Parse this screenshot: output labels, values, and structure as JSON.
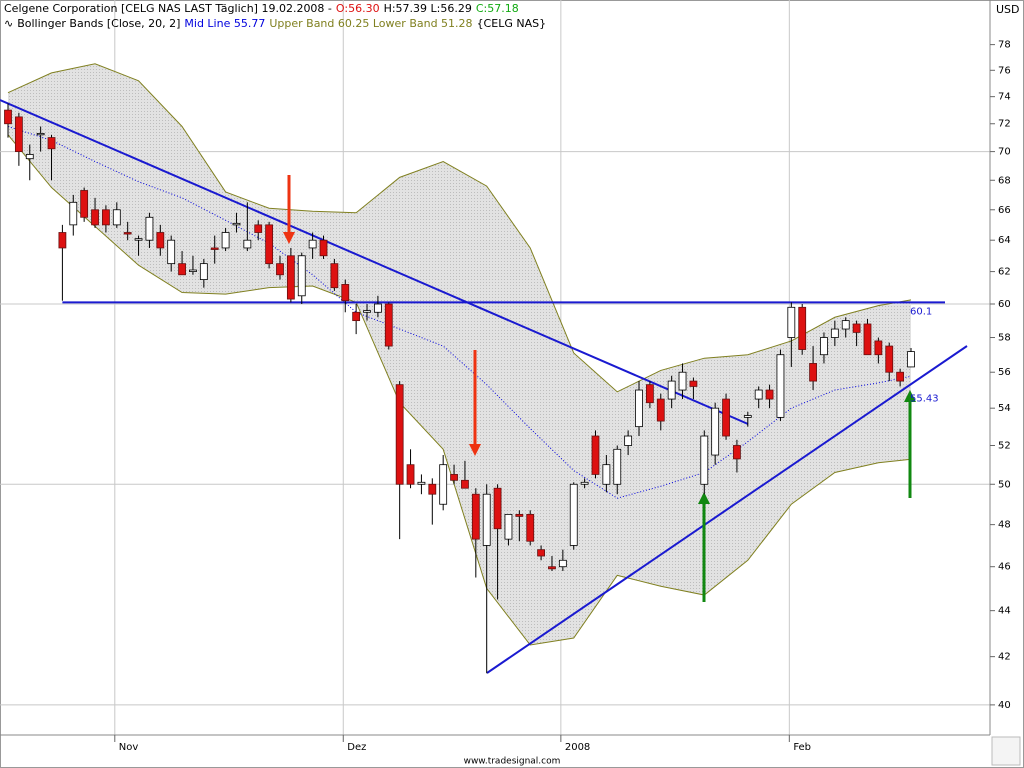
{
  "chart_data": {
    "type": "candlestick",
    "title": "Celgene Corporation [CELG NAS LAST Täglich] 19.02.2008 -",
    "quote": {
      "open": "O:56.30",
      "high_low": "H:57.39 L:56.29",
      "close": "C:57.18"
    },
    "indicator": {
      "name": "Bollinger Bands [Close, 20, 2]",
      "mid": "Mid Line 55.77",
      "bands": "Upper Band 60.25 Lower Band 51.28",
      "symbol": "{CELG NAS}"
    },
    "y_label": "USD",
    "watermark": "www.tradesignal.com",
    "log_scale": true,
    "ylim": [
      38.8,
      81.6
    ],
    "yticks": [
      40,
      42,
      44,
      46,
      48,
      50,
      52,
      54,
      56,
      58,
      60,
      62,
      64,
      66,
      68,
      70,
      72,
      74,
      76,
      78
    ],
    "ygrid": [
      40,
      50,
      60,
      70
    ],
    "categories": [
      null,
      null,
      null,
      null,
      null,
      null,
      null,
      null,
      null,
      null,
      "Nov",
      null,
      null,
      null,
      null,
      null,
      null,
      null,
      null,
      null,
      null,
      null,
      null,
      null,
      null,
      null,
      null,
      null,
      null,
      null,
      null,
      "Dez",
      null,
      null,
      null,
      null,
      null,
      null,
      null,
      null,
      null,
      null,
      null,
      null,
      null,
      null,
      null,
      null,
      null,
      null,
      null,
      "2008",
      null,
      null,
      null,
      null,
      null,
      null,
      null,
      null,
      null,
      null,
      null,
      null,
      null,
      null,
      null,
      null,
      null,
      null,
      null,
      null,
      "Feb",
      null,
      null,
      null,
      null,
      null,
      null,
      null,
      null,
      null,
      null,
      null
    ],
    "open": [
      73,
      72.5,
      69.5,
      71.2,
      71,
      64.5,
      65,
      67.3,
      66,
      66,
      65,
      64.5,
      64,
      64,
      64.5,
      62.5,
      62.5,
      62,
      61.5,
      63.5,
      63.5,
      65,
      63.5,
      65,
      65,
      62.5,
      63,
      60.5,
      63.5,
      64,
      62.5,
      61.2,
      59.5,
      59.5,
      59.5,
      60,
      55.3,
      51,
      50,
      50,
      49,
      50.5,
      50.2,
      49.5,
      47,
      49.8,
      47.3,
      48.5,
      48.5,
      46.8,
      46,
      46,
      47,
      50,
      52.5,
      50,
      50,
      52,
      53,
      55.3,
      54.5,
      54.5,
      55,
      55.5,
      50,
      51.5,
      54.5,
      52,
      53.5,
      54.5,
      55,
      53.5,
      58,
      59.8,
      56.5,
      57,
      58,
      58.5,
      58.8,
      58.8,
      57.8,
      57.5,
      56,
      56.3
    ],
    "high": [
      73.5,
      72.8,
      70.5,
      71.8,
      71.2,
      65,
      67,
      67.5,
      66.8,
      66.3,
      66.5,
      65.2,
      64.3,
      65.8,
      65,
      64.3,
      63.3,
      63,
      62.8,
      64.3,
      64.8,
      65.8,
      66.5,
      65.3,
      65.2,
      63,
      63.5,
      63.2,
      64.5,
      64.3,
      62.8,
      61.5,
      60,
      60,
      60.5,
      60.1,
      55.5,
      51.8,
      50.5,
      50.3,
      51.5,
      51,
      51.2,
      49.8,
      50,
      50,
      48.5,
      48.7,
      48.7,
      47,
      46.5,
      46.8,
      50.1,
      50.3,
      52.8,
      51.5,
      52,
      52.8,
      55.5,
      55.5,
      54.8,
      55.8,
      56.5,
      55.7,
      52.8,
      54.3,
      54.8,
      52.3,
      53.8,
      55.2,
      55.3,
      57.3,
      60.1,
      60,
      57.5,
      58.3,
      59,
      59.2,
      59,
      59.1,
      58,
      57.7,
      56.2,
      57.39
    ],
    "low": [
      71,
      69,
      68,
      70,
      68,
      60.2,
      64.3,
      65.2,
      64.8,
      64.5,
      64.8,
      64,
      63,
      63.5,
      63,
      62,
      61.8,
      61.8,
      61,
      62.5,
      63.3,
      64.5,
      63.3,
      64,
      62.2,
      61.5,
      60.1,
      60,
      62.8,
      62.8,
      60.8,
      59.5,
      58.2,
      59,
      59.2,
      57.3,
      47.3,
      49.8,
      49.5,
      48,
      48.7,
      50,
      49.8,
      45.5,
      41.3,
      44.5,
      47,
      47.2,
      47,
      46.3,
      45.8,
      45.8,
      46.8,
      49.8,
      50.3,
      49.6,
      49.5,
      51.5,
      52.5,
      54,
      52.8,
      54,
      54.5,
      54.5,
      49.5,
      51,
      52.3,
      50.6,
      53,
      54,
      54,
      53.3,
      56.3,
      57,
      55,
      56.5,
      57.5,
      58,
      57.5,
      57,
      56.5,
      55.5,
      55.2,
      56.29
    ],
    "close": [
      72,
      70,
      69.8,
      71.3,
      70.2,
      63.5,
      66.5,
      65.5,
      65,
      65,
      66,
      64.4,
      64.1,
      65.5,
      63.5,
      64,
      61.8,
      62.1,
      62.5,
      63.4,
      64.5,
      65.1,
      64,
      64.5,
      62.5,
      61.8,
      60.3,
      63,
      64,
      63,
      61,
      60.2,
      59,
      59.6,
      60,
      57.5,
      50,
      50,
      50.1,
      49.5,
      51,
      50.2,
      49.8,
      47.3,
      49.5,
      47.8,
      48.5,
      48.4,
      47.2,
      46.5,
      45.9,
      46.3,
      50,
      50.1,
      50.5,
      51,
      51.8,
      52.5,
      55,
      54.3,
      53.3,
      55.5,
      56,
      55.2,
      52.5,
      54,
      52.5,
      51.3,
      53.6,
      55,
      54.5,
      57,
      59.8,
      57.3,
      55.5,
      58,
      58.5,
      59,
      58.3,
      57,
      57,
      56,
      55.5,
      57.18
    ],
    "up_color": "#ffffff",
    "down_color": "#dd1111",
    "bands": {
      "x": [
        0,
        4,
        8,
        12,
        16,
        20,
        24,
        28,
        32,
        36,
        40,
        44,
        48,
        52,
        56,
        60,
        64,
        68,
        72,
        76,
        80,
        83
      ],
      "upper": {
        "color": "#808020",
        "values": [
          74.3,
          75.8,
          76.5,
          75.2,
          71.8,
          67.2,
          66.1,
          65.9,
          65.8,
          68.2,
          69.3,
          67.6,
          63.5,
          57.1,
          54.9,
          56.1,
          56.8,
          57,
          57.8,
          59.2,
          59.9,
          60.25
        ]
      },
      "middle": {
        "color": "#0000dd",
        "values": [
          71.8,
          70.8,
          69.3,
          67.9,
          66.8,
          65.3,
          63.8,
          61.8,
          59.5,
          58.5,
          57.5,
          55.3,
          52.9,
          50.7,
          49.3,
          49.9,
          50.6,
          52.2,
          54,
          55,
          55.4,
          55.77
        ]
      },
      "lower": {
        "color": "#808020",
        "values": [
          71.2,
          67.5,
          64.9,
          62.4,
          60.7,
          60.6,
          61,
          61.1,
          60.1,
          54.3,
          51.8,
          45,
          42.5,
          42.8,
          45.6,
          45.1,
          44.7,
          46.3,
          49,
          50.6,
          51.1,
          51.28
        ]
      }
    },
    "resistance": 60.1,
    "support_label": 55.43
  }
}
